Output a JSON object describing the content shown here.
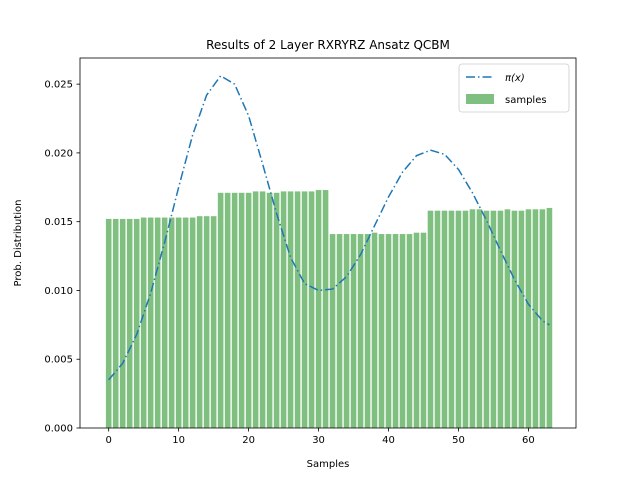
{
  "chart_data": {
    "type": "bar",
    "title": "Results of 2 Layer RXRYRZ Ansatz QCBM",
    "xlabel": "Samples",
    "ylabel": "Prob. Distribution",
    "xlim": [
      -4.1,
      66.8
    ],
    "ylim": [
      0.0,
      0.0269
    ],
    "xticks": [
      0,
      10,
      20,
      30,
      40,
      50,
      60
    ],
    "xtick_labels": [
      "0",
      "10",
      "20",
      "30",
      "40",
      "50",
      "60"
    ],
    "yticks": [
      0.0,
      0.005,
      0.01,
      0.015,
      0.02,
      0.025
    ],
    "ytick_labels": [
      "0.000",
      "0.005",
      "0.010",
      "0.015",
      "0.020",
      "0.025"
    ],
    "grid": false,
    "legend_position": "top-right",
    "series": [
      {
        "name": "π(x)",
        "kind": "line",
        "style": "dashdot",
        "color": "#1f77b4",
        "x": [
          0,
          2,
          4,
          6,
          8,
          10,
          12,
          14,
          16,
          18,
          20,
          22,
          24,
          26,
          28,
          30,
          32,
          34,
          36,
          38,
          40,
          42,
          44,
          46,
          48,
          50,
          52,
          54,
          56,
          58,
          60,
          62,
          63
        ],
        "values": [
          0.0035,
          0.0047,
          0.0068,
          0.0098,
          0.0135,
          0.0175,
          0.0213,
          0.0242,
          0.0256,
          0.025,
          0.0227,
          0.0192,
          0.0156,
          0.0124,
          0.0105,
          0.01,
          0.0101,
          0.011,
          0.0126,
          0.0147,
          0.0168,
          0.0186,
          0.0198,
          0.0202,
          0.0199,
          0.0188,
          0.0171,
          0.0151,
          0.0129,
          0.0108,
          0.009,
          0.0078,
          0.0075
        ]
      },
      {
        "name": "samples",
        "kind": "bar",
        "color": "#7fbf7f",
        "x": [
          0,
          1,
          2,
          3,
          4,
          5,
          6,
          7,
          8,
          9,
          10,
          11,
          12,
          13,
          14,
          15,
          16,
          17,
          18,
          19,
          20,
          21,
          22,
          23,
          24,
          25,
          26,
          27,
          28,
          29,
          30,
          31,
          32,
          33,
          34,
          35,
          36,
          37,
          38,
          39,
          40,
          41,
          42,
          43,
          44,
          45,
          46,
          47,
          48,
          49,
          50,
          51,
          52,
          53,
          54,
          55,
          56,
          57,
          58,
          59,
          60,
          61,
          62,
          63
        ],
        "values": [
          0.0152,
          0.0152,
          0.0152,
          0.0152,
          0.0152,
          0.0153,
          0.0153,
          0.0153,
          0.0153,
          0.0153,
          0.0153,
          0.0153,
          0.0153,
          0.0154,
          0.0154,
          0.0154,
          0.0171,
          0.0171,
          0.0171,
          0.0171,
          0.0171,
          0.0172,
          0.0172,
          0.0171,
          0.0171,
          0.0172,
          0.0172,
          0.0172,
          0.0172,
          0.0172,
          0.0173,
          0.0173,
          0.0141,
          0.0141,
          0.0141,
          0.0141,
          0.0141,
          0.0141,
          0.0142,
          0.0141,
          0.0141,
          0.0141,
          0.0141,
          0.0141,
          0.0142,
          0.0142,
          0.0158,
          0.0158,
          0.0158,
          0.0158,
          0.0158,
          0.0158,
          0.0159,
          0.0159,
          0.0158,
          0.0158,
          0.0158,
          0.0159,
          0.0158,
          0.0158,
          0.0159,
          0.0159,
          0.0159,
          0.016
        ]
      }
    ]
  }
}
